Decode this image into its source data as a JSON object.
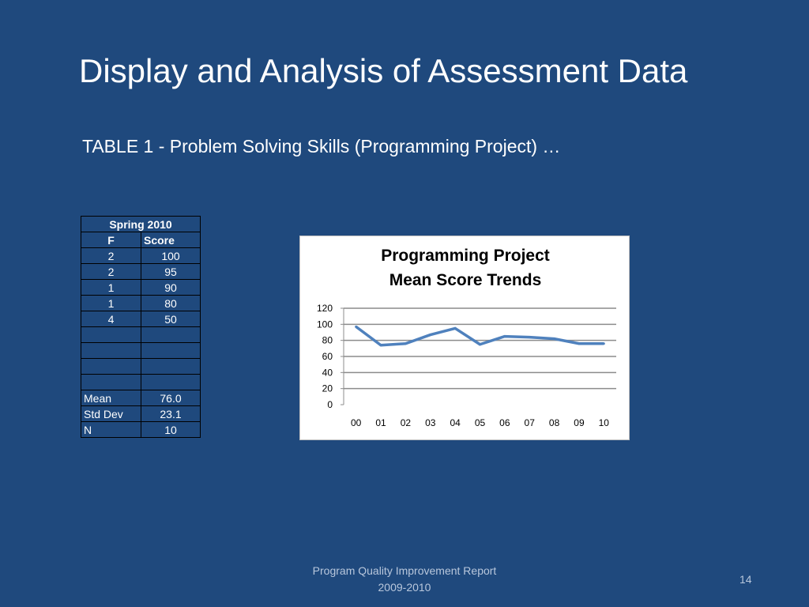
{
  "slide": {
    "title": "Display and Analysis of Assessment Data",
    "subtitle": "TABLE 1 - Problem Solving Skills (Programming Project) …",
    "footer_line1": "Program Quality Improvement Report",
    "footer_line2": "2009-2010",
    "page_number": "14"
  },
  "table": {
    "header": "Spring 2010",
    "col1": "F",
    "col2": "Score",
    "rows": [
      {
        "f": "2",
        "score": "100"
      },
      {
        "f": "2",
        "score": "95"
      },
      {
        "f": "1",
        "score": "90"
      },
      {
        "f": "1",
        "score": "80"
      },
      {
        "f": "4",
        "score": "50"
      },
      {
        "f": "",
        "score": ""
      },
      {
        "f": "",
        "score": ""
      },
      {
        "f": "",
        "score": ""
      },
      {
        "f": "",
        "score": ""
      }
    ],
    "stats": [
      {
        "label": "Mean",
        "value": "76.0"
      },
      {
        "label": "Std Dev",
        "value": "23.1"
      },
      {
        "label": "N",
        "value": "10"
      }
    ]
  },
  "chart_data": {
    "type": "line",
    "title_line1": "Programming Project",
    "title_line2": "Mean Score Trends",
    "xlabel": "",
    "ylabel": "",
    "categories": [
      "00",
      "01",
      "02",
      "03",
      "04",
      "05",
      "06",
      "07",
      "08",
      "09",
      "10"
    ],
    "series": [
      {
        "values": [
          97,
          74,
          76,
          87,
          95,
          75,
          85,
          84,
          82,
          76,
          76
        ]
      }
    ],
    "ylim": [
      0,
      120
    ],
    "yticks": [
      0,
      20,
      40,
      60,
      80,
      100,
      120
    ],
    "grid": true,
    "legend": "none",
    "line_color": "#4f81bd",
    "grid_color": "#8c8c8c"
  },
  "colors": {
    "background": "#1f497d",
    "text": "#ffffff",
    "footer_text": "#b8c7dc"
  }
}
